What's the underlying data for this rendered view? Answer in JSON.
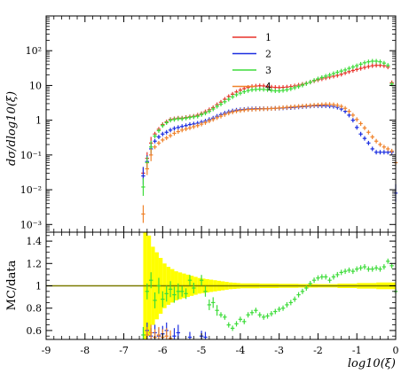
{
  "chart_data": [
    {
      "type": "scatter",
      "panel": "main",
      "ylabel": "dσ/dlog10(ξ)",
      "yscale": "log",
      "ylim": [
        0.0006,
        1000
      ],
      "xlim": [
        -9,
        0
      ],
      "ytick_labels": [
        "10⁻³",
        "10⁻²",
        "10⁻¹",
        "1",
        "10",
        "10²"
      ],
      "ytick_values": [
        0.001,
        0.01,
        0.1,
        1,
        10,
        100
      ],
      "legend_position": "top-right",
      "series": [
        {
          "name": "1",
          "color": "#e8322a",
          "x": [
            -6.5,
            -6.4,
            -6.3,
            -6.2,
            -6.1,
            -6.0,
            -5.9,
            -5.8,
            -5.7,
            -5.6,
            -5.5,
            -5.4,
            -5.3,
            -5.2,
            -5.1,
            -5.0,
            -4.9,
            -4.8,
            -4.7,
            -4.6,
            -4.5,
            -4.4,
            -4.3,
            -4.2,
            -4.1,
            -4.0,
            -3.9,
            -3.8,
            -3.7,
            -3.6,
            -3.5,
            -3.4,
            -3.3,
            -3.2,
            -3.1,
            -3.0,
            -2.9,
            -2.8,
            -2.7,
            -2.6,
            -2.5,
            -2.4,
            -2.3,
            -2.2,
            -2.1,
            -2.0,
            -1.9,
            -1.8,
            -1.7,
            -1.6,
            -1.5,
            -1.4,
            -1.3,
            -1.2,
            -1.1,
            -1.0,
            -0.9,
            -0.8,
            -0.7,
            -0.6,
            -0.5,
            -0.4,
            -0.3,
            -0.2,
            -0.1
          ],
          "y": [
            0.03,
            0.08,
            0.22,
            0.4,
            0.55,
            0.75,
            0.9,
            1.05,
            1.1,
            1.15,
            1.15,
            1.2,
            1.25,
            1.3,
            1.4,
            1.55,
            1.75,
            2.0,
            2.3,
            2.8,
            3.3,
            4.0,
            4.8,
            5.6,
            6.5,
            7.3,
            8.1,
            8.8,
            9.3,
            9.6,
            9.8,
            9.7,
            9.4,
            9.0,
            8.8,
            8.7,
            8.8,
            9.0,
            9.3,
            9.7,
            10.2,
            10.8,
            11.5,
            12.5,
            13.5,
            14.5,
            15.5,
            16.5,
            17.5,
            18.5,
            19.5,
            21,
            23,
            25,
            27,
            29,
            31,
            33,
            35,
            37,
            38,
            38,
            37,
            34,
            12
          ]
        },
        {
          "name": "2",
          "color": "#1b2ee0",
          "x": [
            -6.5,
            -6.4,
            -6.3,
            -6.2,
            -6.1,
            -6.0,
            -5.9,
            -5.8,
            -5.7,
            -5.6,
            -5.5,
            -5.4,
            -5.3,
            -5.2,
            -5.1,
            -5.0,
            -4.9,
            -4.8,
            -4.7,
            -4.6,
            -4.5,
            -4.4,
            -4.3,
            -4.2,
            -4.1,
            -4.0,
            -3.9,
            -3.8,
            -3.7,
            -3.6,
            -3.5,
            -3.4,
            -3.3,
            -3.2,
            -3.1,
            -3.0,
            -2.9,
            -2.8,
            -2.7,
            -2.6,
            -2.5,
            -2.4,
            -2.3,
            -2.2,
            -2.1,
            -2.0,
            -1.9,
            -1.8,
            -1.7,
            -1.6,
            -1.5,
            -1.4,
            -1.3,
            -1.2,
            -1.1,
            -1.0,
            -0.9,
            -0.8,
            -0.7,
            -0.6,
            -0.5,
            -0.4,
            -0.3,
            -0.2,
            -0.1,
            0.0
          ],
          "y": [
            0.025,
            0.065,
            0.15,
            0.25,
            0.33,
            0.4,
            0.45,
            0.52,
            0.58,
            0.62,
            0.66,
            0.7,
            0.75,
            0.78,
            0.82,
            0.88,
            0.95,
            1.05,
            1.15,
            1.3,
            1.45,
            1.6,
            1.75,
            1.85,
            1.95,
            2.0,
            2.05,
            2.1,
            2.12,
            2.15,
            2.15,
            2.15,
            2.15,
            2.18,
            2.2,
            2.22,
            2.25,
            2.28,
            2.3,
            2.35,
            2.4,
            2.45,
            2.5,
            2.55,
            2.6,
            2.6,
            2.6,
            2.6,
            2.55,
            2.5,
            2.35,
            2.1,
            1.8,
            1.4,
            1.0,
            0.62,
            0.4,
            0.3,
            0.22,
            0.15,
            0.12,
            0.12,
            0.12,
            0.12,
            0.12,
            0.008
          ]
        },
        {
          "name": "3",
          "color": "#3ddc3a",
          "x": [
            -6.5,
            -6.4,
            -6.3,
            -6.2,
            -6.1,
            -6.0,
            -5.9,
            -5.8,
            -5.7,
            -5.6,
            -5.5,
            -5.4,
            -5.3,
            -5.2,
            -5.1,
            -5.0,
            -4.9,
            -4.8,
            -4.7,
            -4.6,
            -4.5,
            -4.4,
            -4.3,
            -4.2,
            -4.1,
            -4.0,
            -3.9,
            -3.8,
            -3.7,
            -3.6,
            -3.5,
            -3.4,
            -3.3,
            -3.2,
            -3.1,
            -3.0,
            -2.9,
            -2.8,
            -2.7,
            -2.6,
            -2.5,
            -2.4,
            -2.3,
            -2.2,
            -2.1,
            -2.0,
            -1.9,
            -1.8,
            -1.7,
            -1.6,
            -1.5,
            -1.4,
            -1.3,
            -1.2,
            -1.1,
            -1.0,
            -0.9,
            -0.8,
            -0.7,
            -0.6,
            -0.5,
            -0.4,
            -0.3,
            -0.2,
            -0.1
          ],
          "y": [
            0.012,
            0.06,
            0.17,
            0.35,
            0.5,
            0.7,
            0.85,
            1.0,
            1.05,
            1.1,
            1.1,
            1.15,
            1.2,
            1.25,
            1.3,
            1.45,
            1.6,
            1.8,
            2.1,
            2.5,
            2.9,
            3.4,
            4.0,
            4.7,
            5.4,
            6.0,
            6.6,
            7.1,
            7.5,
            7.7,
            7.8,
            7.7,
            7.5,
            7.2,
            7.0,
            7.0,
            7.2,
            7.5,
            8.0,
            8.6,
            9.3,
            10.2,
            11.3,
            12.5,
            14,
            15.5,
            17,
            18.5,
            20,
            22,
            24,
            26,
            28,
            31,
            34,
            37,
            41,
            45,
            48,
            50,
            50,
            48,
            44,
            38,
            11
          ]
        },
        {
          "name": "4",
          "color": "#f0822a",
          "x": [
            -6.5,
            -6.4,
            -6.3,
            -6.2,
            -6.1,
            -6.0,
            -5.9,
            -5.8,
            -5.7,
            -5.6,
            -5.5,
            -5.4,
            -5.3,
            -5.2,
            -5.1,
            -5.0,
            -4.9,
            -4.8,
            -4.7,
            -4.6,
            -4.5,
            -4.4,
            -4.3,
            -4.2,
            -4.1,
            -4.0,
            -3.9,
            -3.8,
            -3.7,
            -3.6,
            -3.5,
            -3.4,
            -3.3,
            -3.2,
            -3.1,
            -3.0,
            -2.9,
            -2.8,
            -2.7,
            -2.6,
            -2.5,
            -2.4,
            -2.3,
            -2.2,
            -2.1,
            -2.0,
            -1.9,
            -1.8,
            -1.7,
            -1.6,
            -1.5,
            -1.4,
            -1.3,
            -1.2,
            -1.1,
            -1.0,
            -0.9,
            -0.8,
            -0.7,
            -0.6,
            -0.5,
            -0.4,
            -0.3,
            -0.2,
            -0.1,
            0.0
          ],
          "y": [
            0.002,
            0.04,
            0.1,
            0.17,
            0.22,
            0.27,
            0.31,
            0.36,
            0.42,
            0.47,
            0.52,
            0.56,
            0.6,
            0.65,
            0.7,
            0.77,
            0.85,
            0.95,
            1.05,
            1.18,
            1.3,
            1.45,
            1.6,
            1.72,
            1.83,
            1.9,
            1.97,
            2.02,
            2.05,
            2.08,
            2.1,
            2.12,
            2.14,
            2.17,
            2.2,
            2.25,
            2.3,
            2.35,
            2.4,
            2.45,
            2.5,
            2.55,
            2.6,
            2.65,
            2.7,
            2.75,
            2.8,
            2.85,
            2.85,
            2.8,
            2.7,
            2.5,
            2.2,
            1.8,
            1.4,
            1.05,
            0.8,
            0.6,
            0.45,
            0.33,
            0.25,
            0.2,
            0.17,
            0.15,
            0.13,
            0.06
          ]
        }
      ]
    },
    {
      "type": "scatter",
      "panel": "ratio",
      "ylabel": "MC/data",
      "xlabel": "log10(ξ)",
      "ylim": [
        0.52,
        1.48
      ],
      "xlim": [
        -9,
        0
      ],
      "xtick_values": [
        -9,
        -8,
        -7,
        -6,
        -5,
        -4,
        -3,
        -2,
        -1,
        0
      ],
      "xtick_labels": [
        "-9",
        "-8",
        "-7",
        "-6",
        "-5",
        "-4",
        "-3",
        "-2",
        "-1",
        "0"
      ],
      "ytick_values": [
        0.6,
        0.8,
        1.0,
        1.2,
        1.4
      ],
      "ytick_labels": [
        "0.6",
        "0.8",
        "1",
        "1.2",
        "1.4"
      ],
      "reference_line": 1.0,
      "reference_color": "#7a7a00",
      "uncertainty_band": {
        "color": "#ffff00",
        "x": [
          -6.5,
          -6.4,
          -6.3,
          -6.2,
          -6.1,
          -6.0,
          -5.9,
          -5.8,
          -5.7,
          -5.6,
          -5.5,
          -5.4,
          -5.3,
          -5.2,
          -5.1,
          -5.0,
          -4.9,
          -4.8,
          -4.7,
          -4.6,
          -4.5,
          -4.4,
          -4.3,
          -4.2,
          -4.1,
          -4.0,
          -3.5,
          -3.0,
          -2.5,
          -2.0,
          -1.5,
          -1.0,
          -0.5,
          0.0
        ],
        "half_width": [
          0.48,
          0.45,
          0.35,
          0.3,
          0.25,
          0.2,
          0.17,
          0.15,
          0.13,
          0.12,
          0.11,
          0.1,
          0.09,
          0.08,
          0.07,
          0.065,
          0.06,
          0.055,
          0.05,
          0.045,
          0.04,
          0.035,
          0.03,
          0.028,
          0.025,
          0.022,
          0.02,
          0.018,
          0.016,
          0.015,
          0.02,
          0.025,
          0.03,
          0.02
        ]
      },
      "series": [
        {
          "name": "3",
          "color": "#3ddc3a",
          "x": [
            -6.5,
            -6.4,
            -6.3,
            -6.2,
            -6.1,
            -6.0,
            -5.9,
            -5.8,
            -5.7,
            -5.6,
            -5.5,
            -5.4,
            -5.3,
            -5.2,
            -5.0,
            -4.9,
            -4.8,
            -4.7,
            -4.6,
            -4.5,
            -4.4,
            -4.3,
            -4.2,
            -4.1,
            -4.0,
            -3.9,
            -3.8,
            -3.7,
            -3.6,
            -3.5,
            -3.4,
            -3.3,
            -3.2,
            -3.1,
            -3.0,
            -2.9,
            -2.8,
            -2.7,
            -2.6,
            -2.5,
            -2.4,
            -2.3,
            -2.2,
            -2.1,
            -2.0,
            -1.9,
            -1.8,
            -1.7,
            -1.6,
            -1.5,
            -1.4,
            -1.3,
            -1.2,
            -1.1,
            -1.0,
            -0.9,
            -0.8,
            -0.7,
            -0.6,
            -0.5,
            -0.4,
            -0.3,
            -0.2,
            -0.1,
            0.0
          ],
          "y": [
            0.56,
            0.95,
            1.05,
            0.87,
            1.0,
            0.88,
            0.93,
            0.97,
            0.92,
            0.95,
            0.95,
            0.93,
            1.05,
            0.98,
            1.05,
            0.95,
            0.83,
            0.85,
            0.78,
            0.74,
            0.72,
            0.65,
            0.62,
            0.66,
            0.7,
            0.68,
            0.74,
            0.76,
            0.78,
            0.74,
            0.72,
            0.73,
            0.75,
            0.77,
            0.79,
            0.8,
            0.83,
            0.85,
            0.88,
            0.92,
            0.95,
            0.98,
            1.02,
            1.05,
            1.07,
            1.08,
            1.08,
            1.05,
            1.08,
            1.1,
            1.12,
            1.13,
            1.14,
            1.13,
            1.15,
            1.16,
            1.17,
            1.15,
            1.15,
            1.16,
            1.15,
            1.17,
            1.22,
            1.18,
            0.95
          ]
        },
        {
          "name": "2",
          "color": "#1b2ee0",
          "x": [
            -6.4,
            -6.3,
            -6.2,
            -6.1,
            -6.0,
            -5.9,
            -5.7,
            -5.6,
            -5.3,
            -5.0,
            -4.9
          ],
          "y": [
            0.6,
            0.55,
            0.58,
            0.55,
            0.57,
            0.6,
            0.55,
            0.58,
            0.54,
            0.55,
            0.54
          ]
        },
        {
          "name": "4",
          "color": "#f0822a",
          "x": [
            -6.4,
            -6.3,
            -6.2,
            -6.1,
            -6.0,
            -5.9,
            -5.8
          ],
          "y": [
            0.56,
            0.58,
            0.54,
            0.56,
            0.54,
            0.55,
            0.53
          ]
        }
      ]
    }
  ]
}
